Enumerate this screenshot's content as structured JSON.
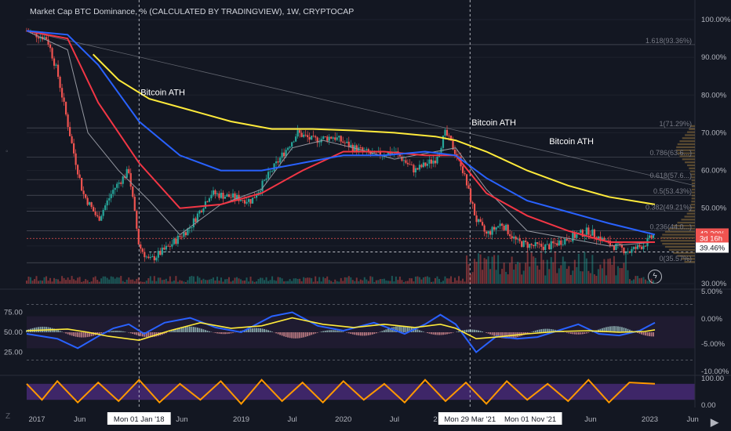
{
  "title": "Market Cap BTC Dominance, % (CALCULATED BY TRADINGVIEW), 1W, CRYPTOCAP",
  "colors": {
    "background": "#131722",
    "up": "#26a69a",
    "down": "#ef5350",
    "ma_blue": "#2962ff",
    "ma_red": "#f23645",
    "ma_yellow": "#ffeb3b",
    "ma_gray": "#9598a1",
    "rsi": "#2962ff",
    "stoch_k": "#ffeb3b",
    "stoch_d": "#ff9800"
  },
  "chart_data": {
    "type": "line",
    "main": {
      "y_axis_labels": [
        "100.00%",
        "90.00%",
        "80.00%",
        "70.00%",
        "60.00%",
        "50.00%",
        "40.00%",
        "30.00%"
      ],
      "ylim": [
        30,
        100
      ],
      "x_axis_labels": [
        "2017",
        "Jun",
        "Mon 01 Jan '18",
        "Jun",
        "2019",
        "Jul",
        "2020",
        "Jul",
        "2",
        "Mon 29 Mar '21",
        "Mon 01 Nov '21",
        "Jun",
        "2023",
        "Jun"
      ],
      "fib_levels": [
        {
          "label": "1.618(93.36%)",
          "value": 93.36
        },
        {
          "label": "1(71.29%)",
          "value": 71.29
        },
        {
          "label": "0.786(63.6...)",
          "value": 63.6
        },
        {
          "label": "0.618(57.6...)",
          "value": 57.6
        },
        {
          "label": "0.5(53.43%)",
          "value": 53.43
        },
        {
          "label": "0.382(49.21%)",
          "value": 49.21
        },
        {
          "label": "0.236(44.0...)",
          "value": 44.0
        },
        {
          "label": "0(35.57%)",
          "value": 35.57
        }
      ],
      "price_labels": [
        {
          "text": "43.20%",
          "value": 43.2
        },
        {
          "text": "3d 16h",
          "value": 41.9
        },
        {
          "text": "39.46%",
          "value": 39.46
        }
      ],
      "annotations": [
        "Bitcoin ATH",
        "Bitcoin ATH",
        "Bitcoin ATH"
      ],
      "series": [
        {
          "name": "price",
          "x": [
            2016.9,
            2017.1,
            2017.2,
            2017.35,
            2017.45,
            2017.6,
            2017.75,
            2017.9,
            2018.0,
            2018.1,
            2018.3,
            2018.5,
            2018.7,
            2018.9,
            2019.1,
            2019.3,
            2019.45,
            2019.55,
            2019.7,
            2019.9,
            2020.1,
            2020.3,
            2020.5,
            2020.7,
            2020.9,
            2021.0,
            2021.15,
            2021.3,
            2021.4,
            2021.55,
            2021.7,
            2021.85,
            2022.0,
            2022.2,
            2022.4,
            2022.6,
            2022.8,
            2022.95,
            2023.05
          ],
          "y": [
            97,
            95,
            86,
            66,
            54,
            47,
            55,
            60,
            40,
            36,
            40,
            45,
            54,
            53,
            52,
            60,
            66,
            70,
            68,
            69,
            66,
            64,
            65,
            60,
            63,
            70,
            62,
            47,
            43,
            46,
            41,
            40,
            39.8,
            42,
            44,
            40.5,
            38.5,
            40.5,
            43.2
          ]
        },
        {
          "name": "ma_gray",
          "x": [
            2016.9,
            2017.3,
            2017.5,
            2017.8,
            2018.1,
            2018.4,
            2018.8,
            2019.2,
            2019.5,
            2019.8,
            2020.1,
            2020.5,
            2020.9,
            2021.1,
            2021.4,
            2021.8,
            2022.2,
            2022.6,
            2023.05
          ],
          "y": [
            97,
            92,
            70,
            60,
            52,
            43,
            51,
            55,
            66,
            68,
            66,
            63,
            65,
            66,
            55,
            44,
            42,
            40,
            41
          ]
        },
        {
          "name": "ma_red",
          "x": [
            2016.9,
            2017.3,
            2017.6,
            2018.0,
            2018.4,
            2018.8,
            2019.2,
            2019.6,
            2020.0,
            2020.4,
            2020.8,
            2021.1,
            2021.4,
            2021.8,
            2022.2,
            2022.6,
            2023.05
          ],
          "y": [
            97,
            95,
            78,
            62,
            50,
            51,
            54,
            60,
            65,
            65,
            64,
            64,
            54,
            48,
            44,
            41,
            41
          ]
        },
        {
          "name": "ma_blue",
          "x": [
            2016.9,
            2017.3,
            2017.6,
            2018.0,
            2018.4,
            2018.8,
            2019.2,
            2019.6,
            2020.0,
            2020.4,
            2020.8,
            2021.1,
            2021.4,
            2021.8,
            2022.2,
            2022.6,
            2023.05
          ],
          "y": [
            97,
            96,
            88,
            73,
            64,
            60,
            60,
            62,
            64,
            64,
            65,
            64,
            58,
            52,
            49,
            46,
            43
          ]
        },
        {
          "name": "ma_yellow",
          "x": [
            2017.55,
            2017.8,
            2018.1,
            2018.5,
            2018.9,
            2019.3,
            2019.7,
            2020.1,
            2020.5,
            2020.9,
            2021.1,
            2021.4,
            2021.8,
            2022.2,
            2022.6,
            2023.05
          ],
          "y": [
            90.8,
            84,
            79,
            76,
            73,
            71,
            71,
            70.6,
            70,
            69,
            68,
            65,
            60,
            56,
            53,
            51
          ]
        }
      ]
    },
    "macd": {
      "left_labels": [
        "75.00",
        "50.00",
        "25.00"
      ],
      "right_labels": [
        "5.00%",
        "0.00%",
        "-5.00%",
        "-10.00%"
      ],
      "rsi": {
        "x": [
          2016.9,
          2017.2,
          2017.4,
          2017.6,
          2017.75,
          2017.9,
          2018.05,
          2018.25,
          2018.5,
          2018.75,
          2019.0,
          2019.3,
          2019.5,
          2019.75,
          2020.0,
          2020.3,
          2020.6,
          2020.8,
          2020.95,
          2021.1,
          2021.3,
          2021.5,
          2021.7,
          2021.9,
          2022.1,
          2022.3,
          2022.5,
          2022.7,
          2022.9,
          2023.05
        ],
        "values": [
          48,
          42,
          30,
          45,
          55,
          60,
          48,
          62,
          68,
          56,
          50,
          70,
          75,
          58,
          52,
          62,
          48,
          60,
          72,
          60,
          25,
          45,
          42,
          44,
          52,
          60,
          48,
          46,
          52,
          62
        ]
      },
      "stoch": {
        "x": [
          2016.9,
          2017.3,
          2017.5,
          2017.7,
          2018.0,
          2018.3,
          2018.6,
          2018.9,
          2019.2,
          2019.5,
          2019.8,
          2020.1,
          2020.4,
          2020.7,
          2020.95,
          2021.1,
          2021.3,
          2021.5,
          2021.8,
          2022.1,
          2022.4,
          2022.7,
          2022.95,
          2023.05
        ],
        "values": [
          52,
          54,
          50,
          45,
          40,
          52,
          62,
          55,
          58,
          68,
          60,
          56,
          60,
          56,
          60,
          55,
          42,
          44,
          48,
          51,
          52,
          50,
          51,
          53
        ]
      }
    },
    "stoch_rsi": {
      "right_labels": [
        "100.00",
        "0.00"
      ],
      "k": {
        "x": [
          2016.9,
          2017.05,
          2017.2,
          2017.4,
          2017.6,
          2017.8,
          2018.0,
          2018.2,
          2018.4,
          2018.6,
          2018.8,
          2019.0,
          2019.2,
          2019.4,
          2019.6,
          2019.8,
          2020.0,
          2020.2,
          2020.4,
          2020.6,
          2020.8,
          2021.0,
          2021.2,
          2021.4,
          2021.6,
          2021.8,
          2022.0,
          2022.2,
          2022.4,
          2022.6,
          2022.8,
          2023.05
        ],
        "values": [
          80,
          20,
          90,
          10,
          85,
          15,
          95,
          10,
          80,
          20,
          90,
          5,
          95,
          15,
          85,
          10,
          90,
          20,
          80,
          10,
          95,
          15,
          85,
          5,
          90,
          20,
          80,
          15,
          95,
          10,
          85,
          80
        ]
      }
    }
  }
}
